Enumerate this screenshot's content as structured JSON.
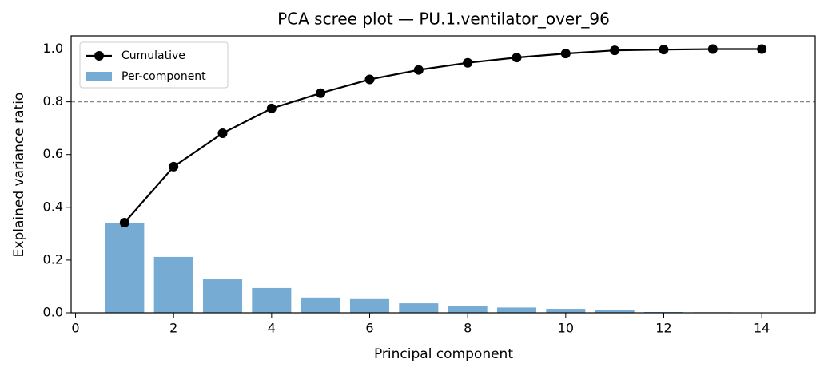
{
  "chart_data": {
    "type": "bar",
    "title": "PCA scree plot — PU.1.ventilator_over_96",
    "x_label": "Principal component",
    "y_label": "Explained variance ratio",
    "x": [
      1,
      2,
      3,
      4,
      5,
      6,
      7,
      8,
      9,
      10,
      11,
      12,
      13,
      14
    ],
    "series": [
      {
        "name": "Cumulative",
        "type": "line",
        "color": "#000000",
        "values": [
          0.342,
          0.554,
          0.681,
          0.775,
          0.833,
          0.885,
          0.921,
          0.948,
          0.968,
          0.983,
          0.995,
          0.998,
          1.0,
          1.0
        ]
      },
      {
        "name": "Per-component",
        "type": "bar",
        "color": "#76acd4",
        "values": [
          0.342,
          0.212,
          0.127,
          0.094,
          0.058,
          0.052,
          0.036,
          0.027,
          0.02,
          0.015,
          0.012,
          0.003,
          0.002,
          0.0005
        ]
      }
    ],
    "threshold": 0.8,
    "xlim": [
      -0.09,
      15.09
    ],
    "ylim": [
      0,
      1.05
    ],
    "xticks": [
      0,
      2,
      4,
      6,
      8,
      10,
      12,
      14
    ],
    "yticks": [
      {
        "value": 0,
        "label": "0.0"
      },
      0.2,
      0.4,
      0.6,
      0.8,
      {
        "value": 1,
        "label": "1.0"
      }
    ],
    "legend": "upper left"
  }
}
